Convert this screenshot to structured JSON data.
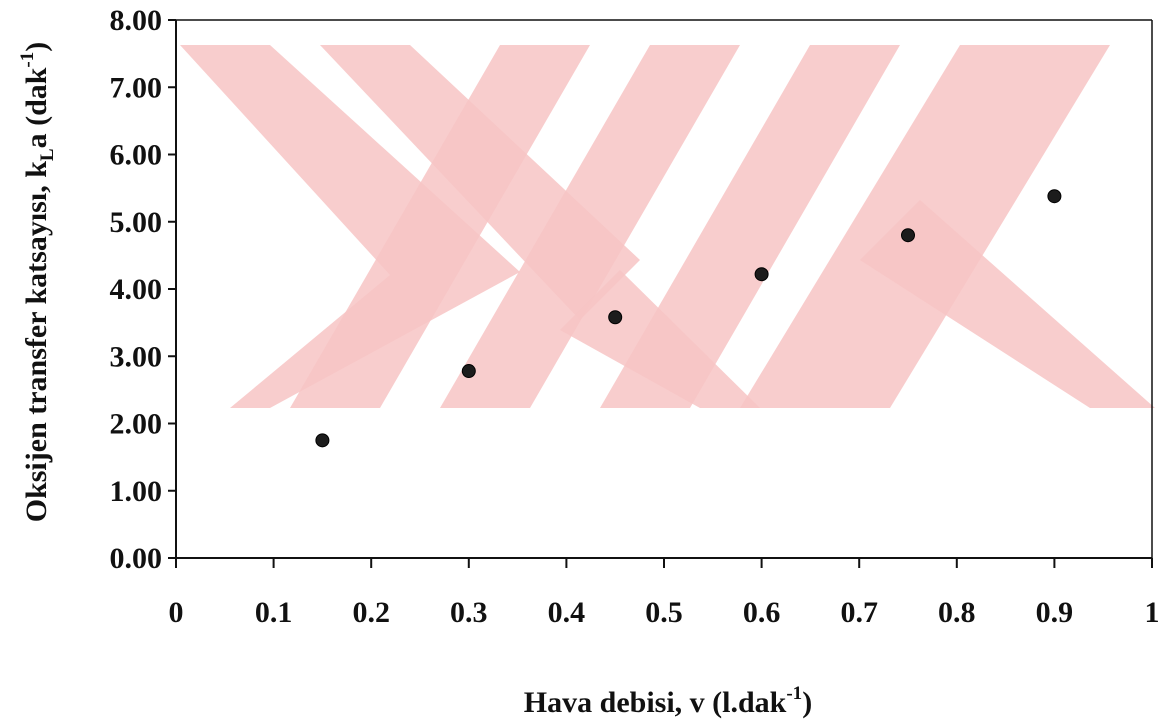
{
  "chart_data": {
    "type": "scatter",
    "title": "",
    "xlabel": {
      "pre": "Hava debisi, v (l.dak",
      "sup": "-1",
      "post": ")"
    },
    "ylabel": {
      "pre": "Oksijen transfer katsayısı, k",
      "sub": "L",
      "mid": "a (dak",
      "sup": "-1",
      "post": ")"
    },
    "xlim": [
      0,
      1
    ],
    "ylim": [
      0,
      8
    ],
    "x_ticks": [
      "0",
      "0.1",
      "0.2",
      "0.3",
      "0.4",
      "0.5",
      "0.6",
      "0.7",
      "0.8",
      "0.9",
      "1"
    ],
    "y_ticks": [
      "0.00",
      "1.00",
      "2.00",
      "3.00",
      "4.00",
      "5.00",
      "6.00",
      "7.00",
      "8.00"
    ],
    "grid": false,
    "legend": "none",
    "series": [
      {
        "x": [
          0.15,
          0.3,
          0.45,
          0.6,
          0.75,
          0.9
        ],
        "y": [
          1.75,
          2.78,
          3.58,
          4.22,
          4.8,
          5.38
        ]
      }
    ]
  },
  "colors": {
    "marker": "#1c1c1c",
    "axis": "#111111",
    "watermark": "#f7c4c4"
  },
  "watermark": {
    "icon": "watermark-logo"
  }
}
